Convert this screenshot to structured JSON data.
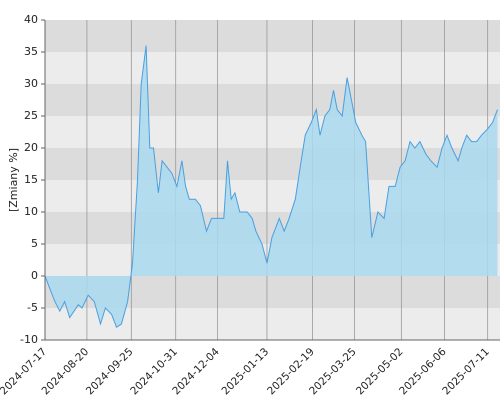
{
  "chart_data": {
    "type": "area",
    "y_label": "[Zmiany %]",
    "x": [
      "2024-07-17",
      "2024-07-21",
      "2024-07-25",
      "2024-07-29",
      "2024-08-02",
      "2024-08-06",
      "2024-08-13",
      "2024-08-16",
      "2024-08-21",
      "2024-08-26",
      "2024-08-31",
      "2024-09-04",
      "2024-09-09",
      "2024-09-13",
      "2024-09-17",
      "2024-09-22",
      "2024-09-26",
      "2024-09-30",
      "2024-10-03",
      "2024-10-07",
      "2024-10-10",
      "2024-10-13",
      "2024-10-17",
      "2024-10-20",
      "2024-10-24",
      "2024-10-28",
      "2024-11-01",
      "2024-11-05",
      "2024-11-08",
      "2024-11-11",
      "2024-11-16",
      "2024-11-20",
      "2024-11-25",
      "2024-11-29",
      "2024-12-06",
      "2024-12-09",
      "2024-12-12",
      "2024-12-15",
      "2024-12-18",
      "2024-12-22",
      "2024-12-28",
      "2025-01-01",
      "2025-01-04",
      "2025-01-09",
      "2025-01-13",
      "2025-01-17",
      "2025-01-23",
      "2025-01-27",
      "2025-01-31",
      "2025-02-05",
      "2025-02-09",
      "2025-02-13",
      "2025-02-18",
      "2025-02-22",
      "2025-02-25",
      "2025-03-01",
      "2025-03-05",
      "2025-03-08",
      "2025-03-11",
      "2025-03-15",
      "2025-03-19",
      "2025-03-21",
      "2025-03-26",
      "2025-03-31",
      "2025-04-03",
      "2025-04-08",
      "2025-04-13",
      "2025-04-18",
      "2025-04-22",
      "2025-04-27",
      "2025-05-01",
      "2025-05-05",
      "2025-05-09",
      "2025-05-13",
      "2025-05-17",
      "2025-05-22",
      "2025-05-26",
      "2025-05-31",
      "2025-06-04",
      "2025-06-08",
      "2025-06-12",
      "2025-06-17",
      "2025-06-20",
      "2025-06-24",
      "2025-06-28",
      "2025-07-02",
      "2025-07-06",
      "2025-07-11",
      "2025-07-15",
      "2025-07-19"
    ],
    "values": [
      0,
      -2,
      -4,
      -5.5,
      -4,
      -6.5,
      -4.5,
      -5,
      -3,
      -4,
      -7.5,
      -5,
      -6,
      -8,
      -7.5,
      -4,
      2,
      15,
      30,
      36,
      20,
      20,
      13,
      18,
      17,
      16,
      14,
      18,
      14,
      12,
      12,
      11,
      7,
      9,
      9,
      9,
      18,
      12,
      13,
      10,
      10,
      9,
      7,
      5,
      2,
      6,
      9,
      7,
      9,
      12,
      17,
      22,
      24,
      26,
      22,
      25,
      26,
      29,
      26,
      25,
      31,
      29,
      24,
      22,
      21,
      6,
      10,
      9,
      14,
      14,
      17,
      18,
      21,
      20,
      21,
      19,
      18,
      17,
      20,
      22,
      20,
      18,
      20,
      22,
      21,
      21,
      22,
      23,
      24,
      26
    ],
    "line_color": "#4a9fe0",
    "fill_color": "#a9d9ee",
    "xlim": [
      "2024-07-17",
      "2025-07-21"
    ],
    "xticks": [
      "2024-07-17",
      "2024-08-20",
      "2024-09-25",
      "2024-10-31",
      "2024-12-04",
      "2025-01-13",
      "2025-02-19",
      "2025-03-25",
      "2025-05-02",
      "2025-06-06",
      "2025-07-11"
    ],
    "ylim": [
      -10,
      40
    ],
    "yticks": [
      -10,
      -5,
      0,
      5,
      10,
      15,
      20,
      25,
      30,
      35,
      40
    ],
    "grid": true
  }
}
